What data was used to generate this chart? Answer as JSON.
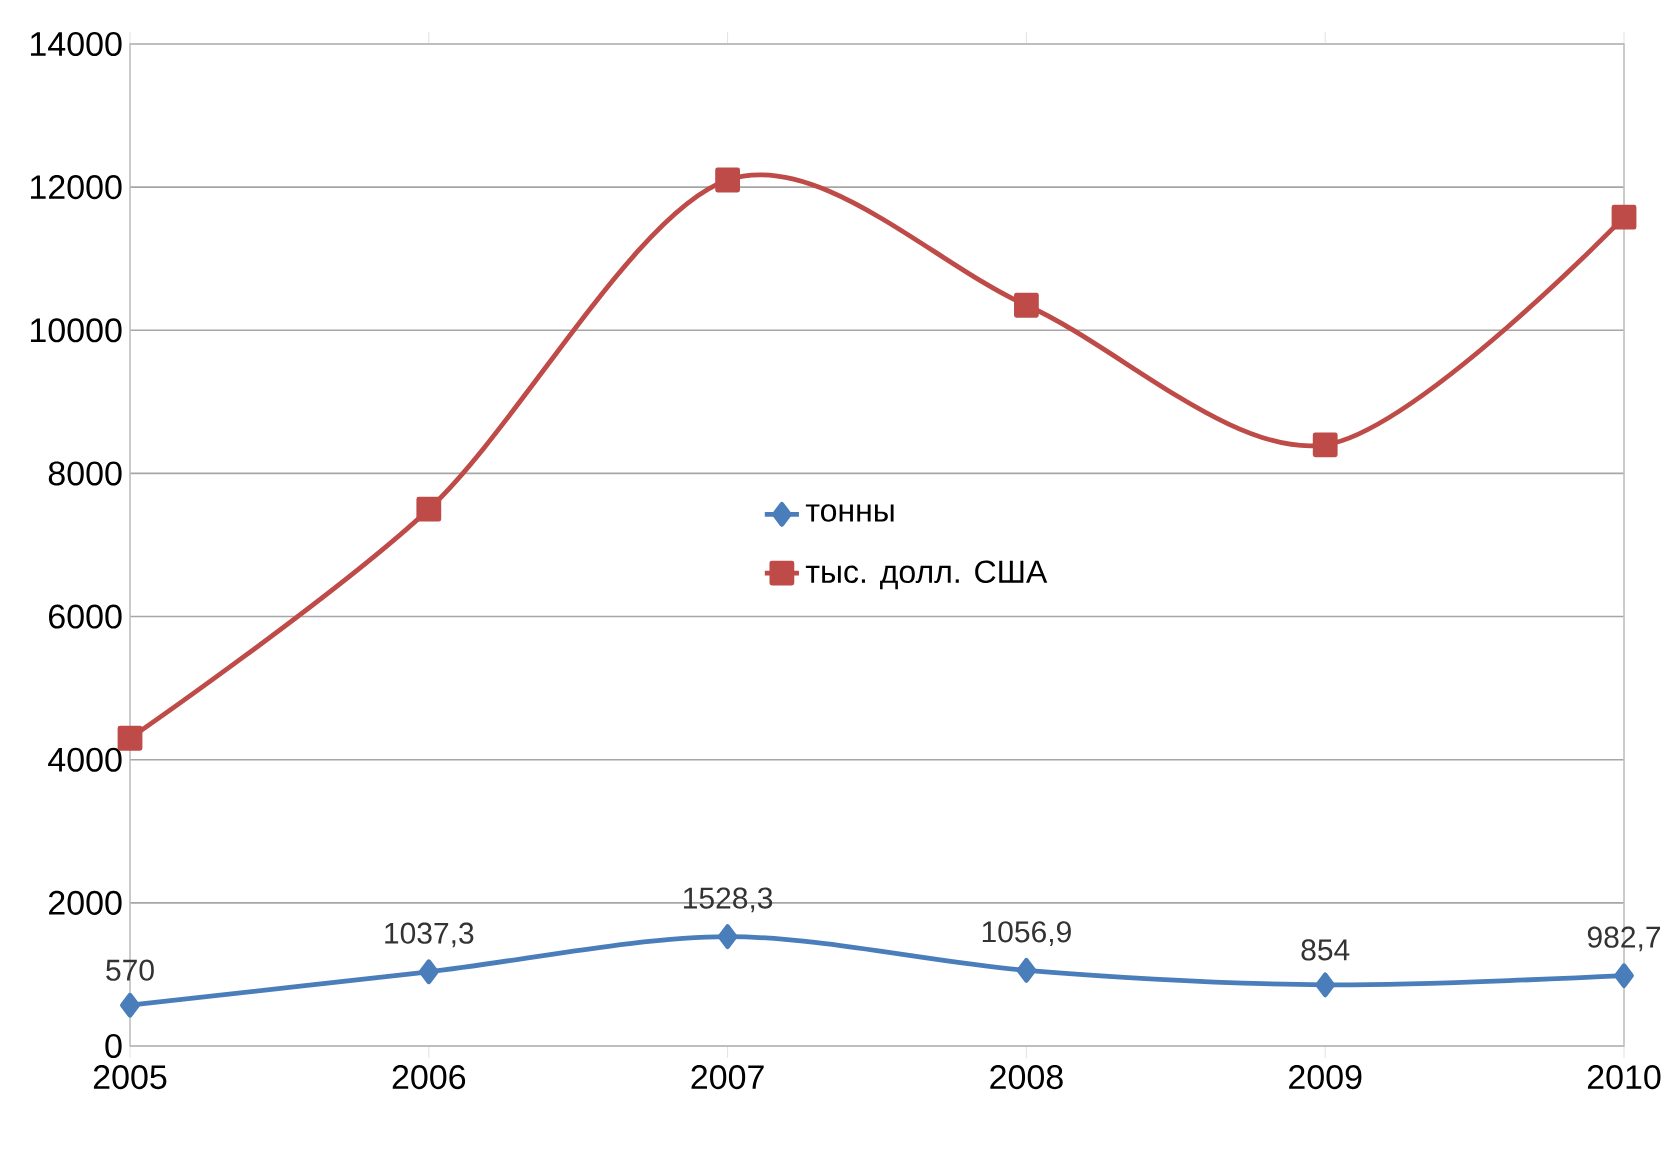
{
  "chart_data": {
    "type": "line",
    "categories": [
      "2005",
      "2006",
      "2007",
      "2008",
      "2009",
      "2010"
    ],
    "series": [
      {
        "name": "тонны",
        "color": "#4a7ebb",
        "marker": "diamond",
        "values": [
          570,
          1037.3,
          1528.3,
          1056.9,
          854,
          982.7
        ],
        "value_labels": [
          "570",
          "1037,3",
          "1528,3",
          "1056,9",
          "854",
          "982,7"
        ]
      },
      {
        "name": "тыс. долл. США",
        "color": "#be4b48",
        "marker": "square",
        "values": [
          4300,
          7500,
          12100,
          10350,
          8400,
          11580
        ]
      }
    ],
    "ylim": [
      0,
      14000
    ],
    "yticks": [
      0,
      2000,
      4000,
      6000,
      8000,
      10000,
      12000,
      14000
    ],
    "grid": "y",
    "legend": "center"
  }
}
